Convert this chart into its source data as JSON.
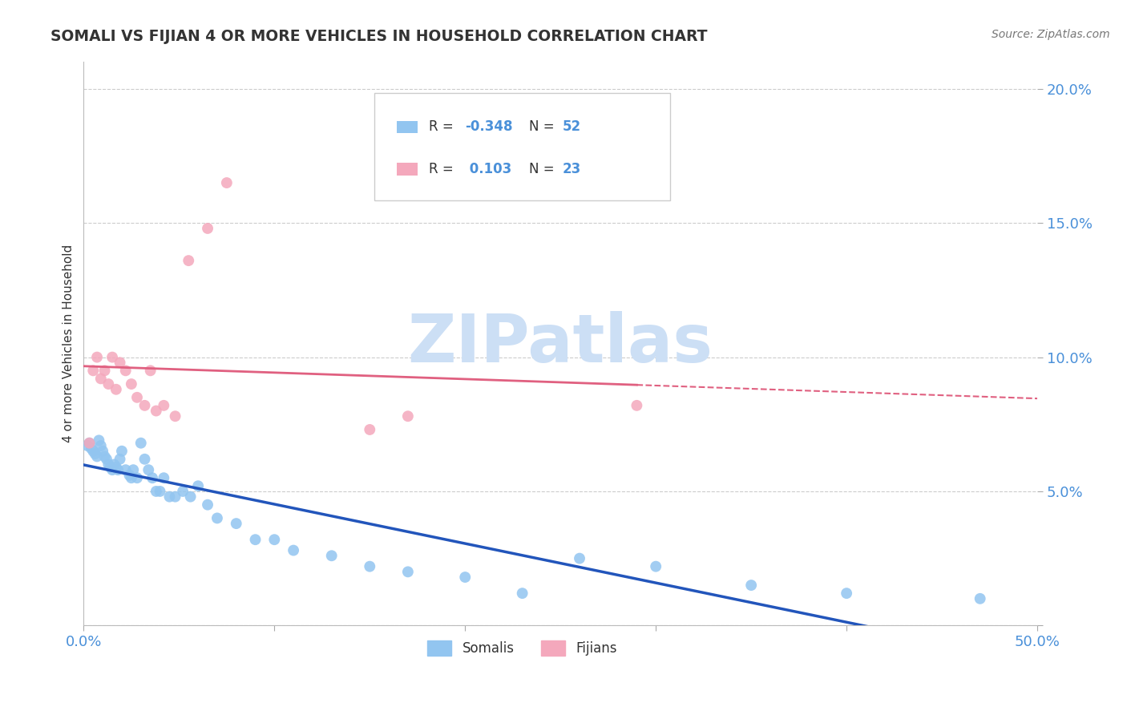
{
  "title": "SOMALI VS FIJIAN 4 OR MORE VEHICLES IN HOUSEHOLD CORRELATION CHART",
  "source": "Source: ZipAtlas.com",
  "ylabel": "4 or more Vehicles in Household",
  "xlim": [
    0.0,
    0.5
  ],
  "ylim": [
    0.0,
    0.21
  ],
  "xticks": [
    0.0,
    0.1,
    0.2,
    0.3,
    0.4,
    0.5
  ],
  "xticklabels": [
    "0.0%",
    "",
    "",
    "",
    "",
    "50.0%"
  ],
  "yticks": [
    0.0,
    0.05,
    0.1,
    0.15,
    0.2
  ],
  "yticklabels": [
    "",
    "5.0%",
    "10.0%",
    "15.0%",
    "20.0%"
  ],
  "somali_color": "#92c5f0",
  "fijian_color": "#f4a8bc",
  "somali_line_color": "#2255bb",
  "fijian_line_color": "#e06080",
  "grid_color": "#cccccc",
  "watermark_color": "#ccdff5",
  "tick_color": "#4a90d9",
  "legend_text_color": "#333333",
  "legend_val_color": "#4a90d9",
  "somali_x": [
    0.002,
    0.003,
    0.004,
    0.005,
    0.006,
    0.007,
    0.008,
    0.009,
    0.01,
    0.011,
    0.012,
    0.013,
    0.014,
    0.015,
    0.016,
    0.017,
    0.018,
    0.019,
    0.02,
    0.022,
    0.024,
    0.025,
    0.026,
    0.028,
    0.03,
    0.032,
    0.034,
    0.036,
    0.038,
    0.04,
    0.042,
    0.045,
    0.048,
    0.052,
    0.056,
    0.06,
    0.065,
    0.07,
    0.08,
    0.09,
    0.1,
    0.11,
    0.13,
    0.15,
    0.17,
    0.2,
    0.23,
    0.26,
    0.3,
    0.35,
    0.4,
    0.47
  ],
  "somali_y": [
    0.067,
    0.068,
    0.066,
    0.065,
    0.064,
    0.063,
    0.069,
    0.067,
    0.065,
    0.063,
    0.062,
    0.06,
    0.059,
    0.058,
    0.06,
    0.059,
    0.058,
    0.062,
    0.065,
    0.058,
    0.056,
    0.055,
    0.058,
    0.055,
    0.068,
    0.062,
    0.058,
    0.055,
    0.05,
    0.05,
    0.055,
    0.048,
    0.048,
    0.05,
    0.048,
    0.052,
    0.045,
    0.04,
    0.038,
    0.032,
    0.032,
    0.028,
    0.026,
    0.022,
    0.02,
    0.018,
    0.012,
    0.025,
    0.022,
    0.015,
    0.012,
    0.01
  ],
  "fijian_x": [
    0.003,
    0.005,
    0.007,
    0.009,
    0.011,
    0.013,
    0.015,
    0.017,
    0.019,
    0.022,
    0.025,
    0.028,
    0.032,
    0.035,
    0.038,
    0.042,
    0.048,
    0.055,
    0.065,
    0.075,
    0.15,
    0.17,
    0.29
  ],
  "fijian_y": [
    0.068,
    0.095,
    0.1,
    0.092,
    0.095,
    0.09,
    0.1,
    0.088,
    0.098,
    0.095,
    0.09,
    0.085,
    0.082,
    0.095,
    0.08,
    0.082,
    0.078,
    0.136,
    0.148,
    0.165,
    0.073,
    0.078,
    0.082
  ]
}
